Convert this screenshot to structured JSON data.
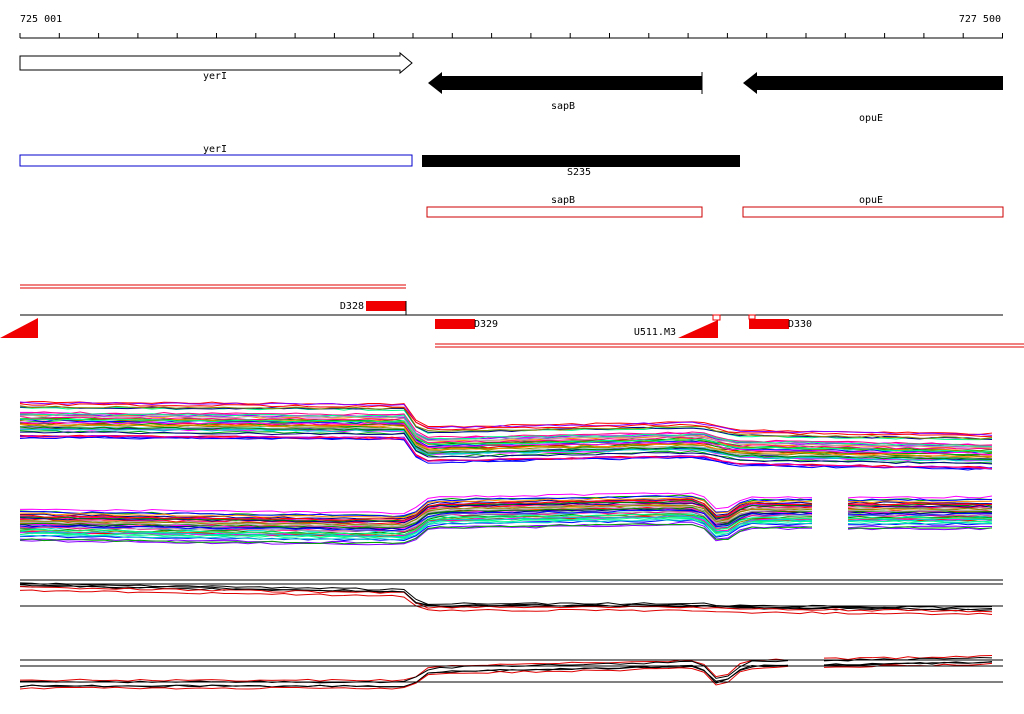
{
  "ruler": {
    "start": "725 001",
    "end": "727 500"
  },
  "genes": [
    {
      "label": "yerI"
    },
    {
      "label": "sapB"
    },
    {
      "label": "opuE"
    }
  ],
  "features": [
    {
      "label": "yerI"
    },
    {
      "label": "S235"
    },
    {
      "label": "sapB"
    },
    {
      "label": "opuE"
    }
  ],
  "probes": [
    {
      "label": "D328"
    },
    {
      "label": "D329"
    },
    {
      "label": "U511.M3"
    },
    {
      "label": "D330"
    }
  ]
}
